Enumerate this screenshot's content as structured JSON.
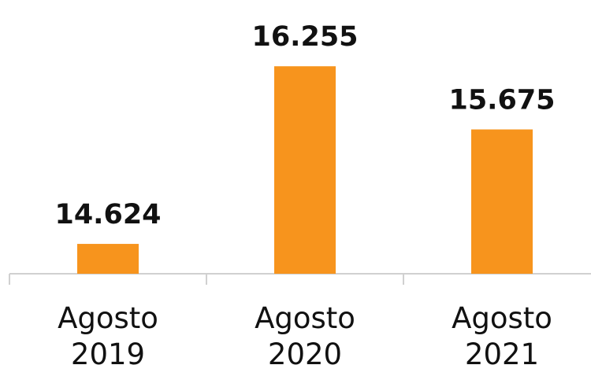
{
  "chart_data": {
    "type": "bar",
    "categories": [
      "Agosto 2019",
      "Agosto 2020",
      "Agosto 2021"
    ],
    "values": [
      14624,
      16255,
      15675
    ],
    "value_labels": [
      "14.624",
      "16.255",
      "15.675"
    ],
    "color": "#f7941d",
    "ylim": [
      14350,
      16300
    ]
  }
}
